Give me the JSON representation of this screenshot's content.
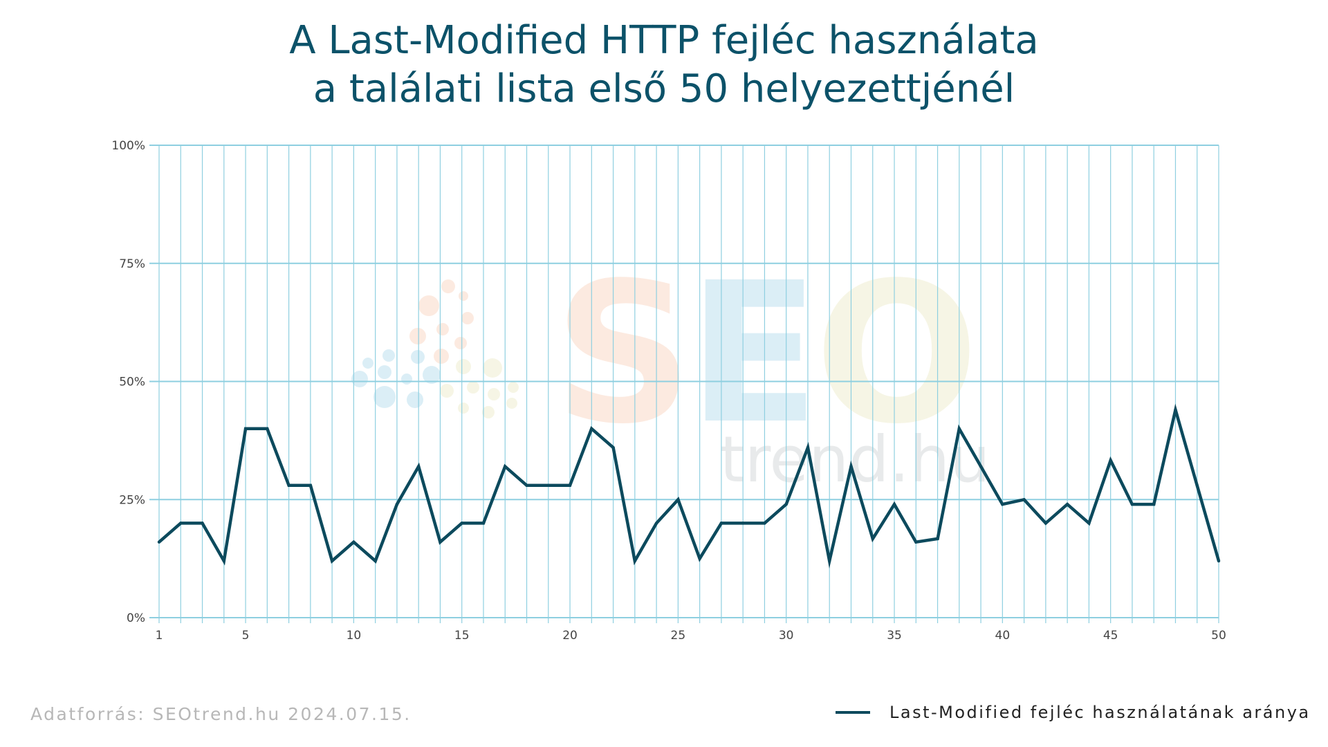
{
  "title_line1": "A Last-Modified HTTP fejléc használata",
  "title_line2": "a találati lista első 50 helyezettjénél",
  "source": "Adatforrás: SEOtrend.hu 2024.07.15.",
  "watermark": {
    "brand": "SEO",
    "domain": "trend.hu"
  },
  "colors": {
    "line": "#0c4a5d",
    "grid": "#8ecfe0",
    "title": "#0c5269"
  },
  "chart_data": {
    "type": "line",
    "title": "A Last-Modified HTTP fejléc használata a találati lista első 50 helyezettjénél",
    "xlabel": "",
    "ylabel": "",
    "x": [
      1,
      2,
      3,
      4,
      5,
      6,
      7,
      8,
      9,
      10,
      11,
      12,
      13,
      14,
      15,
      16,
      17,
      18,
      19,
      20,
      21,
      22,
      23,
      24,
      25,
      26,
      27,
      28,
      29,
      30,
      31,
      32,
      33,
      34,
      35,
      36,
      37,
      38,
      39,
      40,
      41,
      42,
      43,
      44,
      45,
      46,
      47,
      48,
      49,
      50
    ],
    "x_ticks": [
      1,
      5,
      10,
      15,
      20,
      25,
      30,
      35,
      40,
      45,
      50
    ],
    "ylim": [
      0,
      100
    ],
    "y_ticks": [
      0,
      25,
      50,
      75,
      100
    ],
    "y_tick_labels": [
      "0%",
      "25%",
      "50%",
      "75%",
      "100%"
    ],
    "grid": true,
    "legend": "bottom-right",
    "series": [
      {
        "name": "Last-Modified fejléc használatának aránya",
        "values": [
          16,
          20,
          20,
          12,
          40,
          40,
          28,
          28,
          12,
          16,
          12,
          24,
          32,
          16,
          20,
          20,
          32,
          28,
          28,
          28,
          40,
          36,
          12,
          20,
          25,
          12.5,
          20,
          20,
          20,
          24,
          36,
          12,
          32,
          16.7,
          24,
          16,
          16.7,
          40,
          32,
          24,
          25,
          20,
          24,
          20,
          33.3,
          24,
          24,
          44,
          28,
          12
        ]
      }
    ]
  }
}
